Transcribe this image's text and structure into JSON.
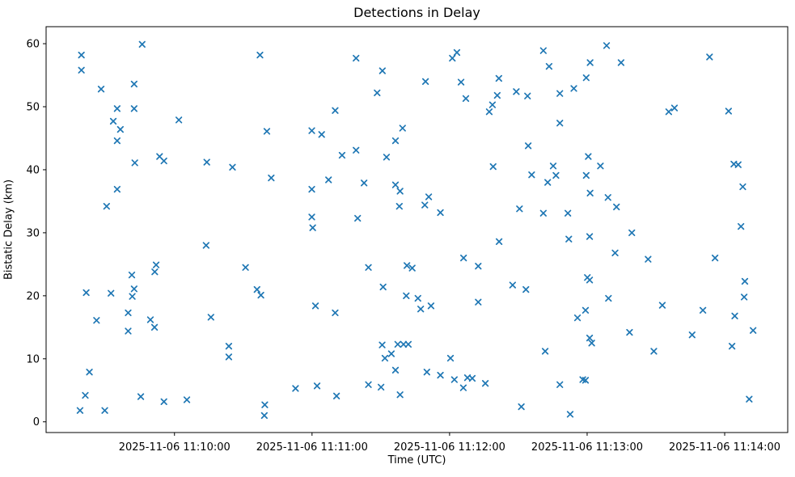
{
  "chart_data": {
    "type": "scatter",
    "title": "Detections in Delay",
    "xlabel": "Time (UTC)",
    "ylabel": "Bistatic Delay (km)",
    "marker": "x",
    "marker_color": "#1f77b4",
    "axis_color": "#000000",
    "background_color": "#ffffff",
    "grid": false,
    "legend": null,
    "x_unit": "seconds after 2025-11-06 11:09:00 UTC",
    "xlim": [
      4,
      327.5
    ],
    "ylim": [
      -1.7,
      62.7
    ],
    "x_ticks": [
      {
        "t": 60,
        "label": "2025-11-06 11:10:00"
      },
      {
        "t": 120,
        "label": "2025-11-06 11:11:00"
      },
      {
        "t": 180,
        "label": "2025-11-06 11:12:00"
      },
      {
        "t": 240,
        "label": "2025-11-06 11:13:00"
      },
      {
        "t": 300,
        "label": "2025-11-06 11:14:00"
      }
    ],
    "y_ticks": [
      0,
      10,
      20,
      30,
      40,
      50,
      60
    ],
    "points": [
      [
        45.9,
        59.9
      ],
      [
        19.4,
        58.2
      ],
      [
        19.4,
        55.8
      ],
      [
        97.3,
        58.2
      ],
      [
        28.0,
        52.8
      ],
      [
        42.4,
        53.6
      ],
      [
        35.0,
        49.7
      ],
      [
        42.4,
        49.7
      ],
      [
        33.3,
        47.7
      ],
      [
        36.4,
        46.4
      ],
      [
        61.9,
        47.9
      ],
      [
        100.3,
        46.1
      ],
      [
        35.0,
        44.6
      ],
      [
        42.7,
        41.1
      ],
      [
        53.5,
        42.1
      ],
      [
        55.4,
        41.4
      ],
      [
        74.1,
        41.2
      ],
      [
        85.3,
        40.4
      ],
      [
        102.2,
        38.7
      ],
      [
        35.0,
        36.9
      ],
      [
        30.4,
        34.2
      ],
      [
        139.2,
        57.7
      ],
      [
        150.7,
        55.7
      ],
      [
        181.2,
        57.7
      ],
      [
        183.2,
        58.6
      ],
      [
        169.5,
        54.0
      ],
      [
        185.0,
        53.9
      ],
      [
        201.5,
        54.5
      ],
      [
        148.4,
        52.2
      ],
      [
        187.1,
        51.3
      ],
      [
        200.8,
        51.8
      ],
      [
        209.1,
        52.4
      ],
      [
        214.0,
        51.7
      ],
      [
        198.7,
        50.3
      ],
      [
        197.3,
        49.2
      ],
      [
        130.1,
        49.4
      ],
      [
        119.9,
        46.2
      ],
      [
        124.2,
        45.6
      ],
      [
        159.5,
        46.6
      ],
      [
        156.4,
        44.6
      ],
      [
        214.3,
        43.8
      ],
      [
        139.2,
        43.1
      ],
      [
        133.1,
        42.3
      ],
      [
        152.5,
        42.0
      ],
      [
        199.0,
        40.5
      ],
      [
        215.8,
        39.2
      ],
      [
        127.2,
        38.4
      ],
      [
        142.7,
        37.9
      ],
      [
        119.9,
        36.9
      ],
      [
        156.4,
        37.6
      ],
      [
        158.4,
        36.6
      ],
      [
        170.9,
        35.7
      ],
      [
        169.2,
        34.4
      ],
      [
        176.0,
        33.2
      ],
      [
        158.1,
        34.2
      ],
      [
        119.9,
        32.5
      ],
      [
        120.3,
        30.8
      ],
      [
        139.9,
        32.3
      ],
      [
        210.5,
        33.8
      ],
      [
        220.9,
        58.9
      ],
      [
        248.5,
        59.7
      ],
      [
        223.4,
        56.4
      ],
      [
        241.3,
        57.0
      ],
      [
        254.8,
        57.0
      ],
      [
        293.4,
        57.9
      ],
      [
        239.6,
        54.6
      ],
      [
        234.2,
        52.9
      ],
      [
        228.1,
        52.1
      ],
      [
        228.1,
        47.4
      ],
      [
        275.6,
        49.2
      ],
      [
        278.1,
        49.8
      ],
      [
        301.7,
        49.3
      ],
      [
        240.5,
        42.1
      ],
      [
        225.2,
        40.6
      ],
      [
        245.8,
        40.6
      ],
      [
        226.4,
        39.1
      ],
      [
        222.8,
        38.0
      ],
      [
        239.6,
        39.1
      ],
      [
        304.0,
        40.9
      ],
      [
        305.9,
        40.8
      ],
      [
        307.9,
        37.3
      ],
      [
        241.3,
        36.3
      ],
      [
        249.1,
        35.6
      ],
      [
        252.8,
        34.1
      ],
      [
        231.6,
        33.1
      ],
      [
        220.9,
        33.1
      ],
      [
        73.8,
        28.0
      ],
      [
        52.0,
        24.9
      ],
      [
        51.4,
        23.8
      ],
      [
        41.4,
        23.3
      ],
      [
        91.0,
        24.5
      ],
      [
        42.4,
        21.1
      ],
      [
        41.6,
        19.9
      ],
      [
        21.5,
        20.5
      ],
      [
        32.3,
        20.4
      ],
      [
        96.0,
        21.0
      ],
      [
        97.7,
        20.1
      ],
      [
        39.8,
        17.3
      ],
      [
        26.0,
        16.1
      ],
      [
        49.5,
        16.2
      ],
      [
        51.3,
        15.0
      ],
      [
        75.9,
        16.6
      ],
      [
        39.8,
        14.4
      ],
      [
        83.7,
        12.0
      ],
      [
        83.7,
        10.3
      ],
      [
        22.9,
        7.9
      ],
      [
        21.1,
        4.2
      ],
      [
        45.3,
        4.0
      ],
      [
        55.4,
        3.2
      ],
      [
        65.4,
        3.5
      ],
      [
        18.8,
        1.8
      ],
      [
        29.6,
        1.8
      ],
      [
        99.4,
        2.7
      ],
      [
        99.2,
        1.0
      ],
      [
        201.6,
        28.6
      ],
      [
        186.1,
        26.0
      ],
      [
        144.6,
        24.5
      ],
      [
        161.4,
        24.8
      ],
      [
        163.7,
        24.4
      ],
      [
        192.5,
        24.7
      ],
      [
        151.0,
        21.4
      ],
      [
        161.1,
        20.0
      ],
      [
        166.2,
        19.6
      ],
      [
        167.4,
        17.9
      ],
      [
        171.9,
        18.4
      ],
      [
        192.5,
        19.0
      ],
      [
        207.5,
        21.7
      ],
      [
        213.3,
        21.0
      ],
      [
        121.5,
        18.4
      ],
      [
        130.1,
        17.3
      ],
      [
        150.6,
        12.2
      ],
      [
        157.4,
        12.3
      ],
      [
        159.9,
        12.3
      ],
      [
        162.0,
        12.3
      ],
      [
        154.6,
        10.8
      ],
      [
        151.8,
        10.1
      ],
      [
        180.4,
        10.1
      ],
      [
        156.4,
        8.2
      ],
      [
        170.1,
        7.9
      ],
      [
        176.0,
        7.4
      ],
      [
        182.1,
        6.7
      ],
      [
        187.8,
        7.0
      ],
      [
        189.9,
        6.9
      ],
      [
        186.0,
        5.4
      ],
      [
        195.6,
        6.1
      ],
      [
        122.2,
        5.7
      ],
      [
        112.8,
        5.3
      ],
      [
        130.7,
        4.1
      ],
      [
        144.6,
        5.9
      ],
      [
        150.1,
        5.5
      ],
      [
        158.4,
        4.3
      ],
      [
        211.3,
        2.4
      ],
      [
        307.1,
        31.0
      ],
      [
        232.0,
        29.0
      ],
      [
        241.1,
        29.4
      ],
      [
        259.5,
        30.0
      ],
      [
        252.2,
        26.8
      ],
      [
        266.6,
        25.8
      ],
      [
        295.8,
        26.0
      ],
      [
        240.1,
        22.9
      ],
      [
        241.1,
        22.5
      ],
      [
        308.8,
        22.3
      ],
      [
        308.5,
        19.8
      ],
      [
        249.3,
        19.6
      ],
      [
        239.3,
        17.7
      ],
      [
        235.8,
        16.5
      ],
      [
        272.8,
        18.5
      ],
      [
        290.5,
        17.7
      ],
      [
        304.4,
        16.8
      ],
      [
        312.4,
        14.5
      ],
      [
        258.5,
        14.2
      ],
      [
        285.8,
        13.8
      ],
      [
        241.1,
        13.3
      ],
      [
        242.0,
        12.5
      ],
      [
        303.2,
        12.0
      ],
      [
        269.1,
        11.2
      ],
      [
        221.7,
        11.2
      ],
      [
        228.1,
        5.9
      ],
      [
        238.1,
        6.7
      ],
      [
        239.3,
        6.6
      ],
      [
        232.6,
        1.2
      ],
      [
        310.7,
        3.6
      ]
    ]
  }
}
